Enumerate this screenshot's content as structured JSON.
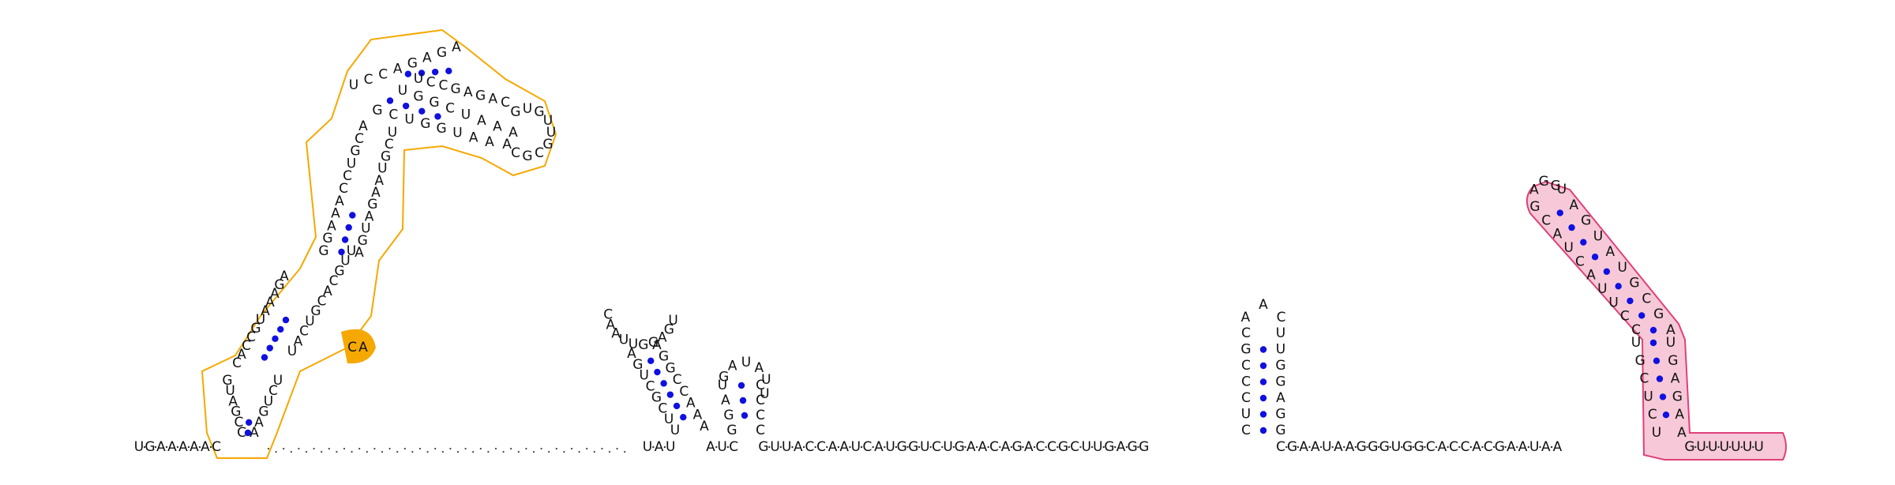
{
  "diagram": {
    "type": "rna-secondary-structure",
    "colors": {
      "highlight_orange": "#f5a800",
      "highlight_pink": "#e0407a",
      "pink_fill": "#f7c9d8",
      "base_pair_dot": "#1010e0",
      "text": "#111111"
    },
    "backbone": {
      "prefix": "UGAAAAAC",
      "gap_dots": 24,
      "segment_1": "UAU",
      "segment_2": "AUC",
      "middle": "GUUACCAAUCAUGGUCUGAACAGACCGCUUGAGG",
      "segment_3": "CGAAUAAGGGUGGCACCACGAAUAA",
      "tail": "GUUUUUU"
    },
    "helix_1": {
      "name": "orange-domain",
      "tip_loop": [
        "G",
        "U",
        "G",
        "U",
        "U",
        "G",
        "C",
        "G",
        "C",
        "A"
      ],
      "stem_outer_left": [
        "U",
        "C",
        "C",
        "A",
        "G",
        "A",
        "G",
        "A"
      ],
      "stem_outer_right": [
        "U",
        "C",
        "C",
        "G",
        "A",
        "G",
        "A",
        "C"
      ],
      "stem_inner_left": [
        "G",
        "C",
        "U",
        "G",
        "G",
        "U",
        "A",
        "A"
      ],
      "stem_inner_right": [
        "U",
        "G",
        "G",
        "C",
        "U",
        "A",
        "A",
        "A"
      ],
      "mid_loop_left": [
        "A",
        "C",
        "G",
        "U",
        "C",
        "C",
        "A",
        "A",
        "A",
        "G",
        "G"
      ],
      "mid_loop_right": [
        "U",
        "C",
        "G",
        "U",
        "A",
        "A",
        "G",
        "A",
        "U",
        "G",
        "A"
      ],
      "lower_left": [
        "A",
        "G",
        "A",
        "A",
        "A",
        "U",
        "G",
        "C",
        "C",
        "A",
        "C"
      ],
      "lower_right": [
        "U",
        "U",
        "G",
        "C",
        "A",
        "C",
        "G",
        "U",
        "C",
        "A",
        "U"
      ],
      "bottom_left": [
        "G",
        "U",
        "A",
        "G",
        "C",
        "C"
      ],
      "bottom_right": [
        "U",
        "C",
        "U",
        "G",
        "A",
        "A"
      ],
      "highlight_nts": [
        "C",
        "A"
      ]
    },
    "helix_2": {
      "loop": [
        "C",
        "A",
        "A",
        "U",
        "U",
        "G",
        "G",
        "A",
        "G",
        "U"
      ],
      "left": [
        "A",
        "G",
        "U",
        "C",
        "G",
        "C",
        "U",
        "U"
      ],
      "right": [
        "A",
        "G",
        "G",
        "C",
        "C",
        "A",
        "A",
        "A"
      ]
    },
    "helix_3": {
      "loop": [
        "G",
        "A",
        "U",
        "A",
        "U",
        "U"
      ],
      "left": [
        "U",
        "A",
        "G",
        "G"
      ],
      "right": [
        "C",
        "C",
        "C",
        "C"
      ]
    },
    "helix_4": {
      "loop": [
        "A",
        "A",
        "C"
      ],
      "left": [
        "C",
        "G",
        "C",
        "C",
        "C",
        "U",
        "C"
      ],
      "right": [
        "U",
        "U",
        "G",
        "G",
        "A",
        "G",
        "G"
      ]
    },
    "helix_5": {
      "name": "pink-domain",
      "loop": [
        "A",
        "G",
        "G"
      ],
      "left": [
        "G",
        "C",
        "A",
        "U",
        "C",
        "A",
        "U",
        "U",
        "C",
        "C",
        "U",
        "G",
        "C",
        "U",
        "C",
        "U"
      ],
      "right": [
        "U",
        "A",
        "G",
        "U",
        "A",
        "U",
        "G",
        "C",
        "G",
        "A",
        "U",
        "G",
        "A",
        "G",
        "A",
        "A"
      ]
    }
  }
}
